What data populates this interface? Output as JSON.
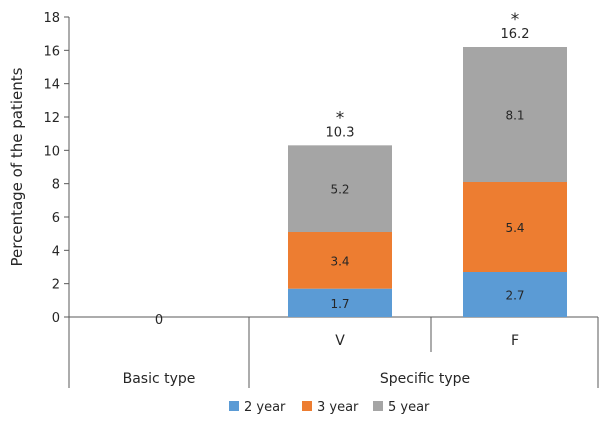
{
  "chart_data": {
    "type": "bar",
    "stacked": true,
    "ylabel": "Percentage of the patients",
    "ylim": [
      0,
      18
    ],
    "yticks": [
      0,
      2,
      4,
      6,
      8,
      10,
      12,
      14,
      16,
      18
    ],
    "groups": [
      {
        "label": "Basic type",
        "categories": [
          ""
        ]
      },
      {
        "label": "Specific type",
        "categories": [
          "V",
          "F"
        ]
      }
    ],
    "categories": [
      "",
      "V",
      "F"
    ],
    "series": [
      {
        "name": "2 year",
        "color": "#5b9bd5",
        "values": [
          0,
          1.7,
          2.7
        ]
      },
      {
        "name": "3 year",
        "color": "#ed7d31",
        "values": [
          0,
          3.4,
          5.4
        ]
      },
      {
        "name": "5 year",
        "color": "#a5a5a5",
        "values": [
          0,
          5.2,
          8.1
        ]
      }
    ],
    "totals": [
      "0",
      "10.3",
      "16.2"
    ],
    "significance": [
      "",
      "*",
      "*"
    ],
    "legend_position": "bottom",
    "grid": false
  }
}
